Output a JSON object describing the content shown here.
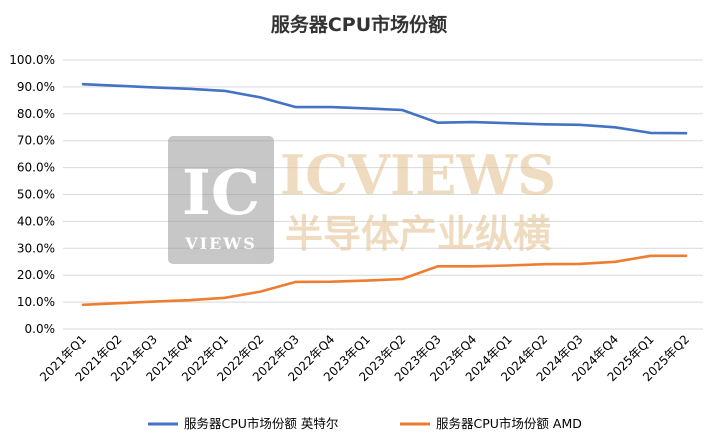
{
  "chart_data": {
    "type": "line",
    "title": "服务器CPU市场份额",
    "categories": [
      "2021年Q1",
      "2021年Q2",
      "2021年Q3",
      "2021年Q4",
      "2022年Q1",
      "2022年Q2",
      "2022年Q3",
      "2022年Q4",
      "2023年Q1",
      "2023年Q2",
      "2023年Q3",
      "2023年Q4",
      "2024年Q1",
      "2024年Q2",
      "2024年Q3",
      "2024年Q4",
      "2025年Q1",
      "2025年Q2"
    ],
    "series": [
      {
        "name": "服务器CPU市场份额 英特尔",
        "color": "#4472C4",
        "values": [
          91.0,
          90.4,
          89.8,
          89.3,
          88.5,
          86.1,
          82.5,
          82.5,
          82.0,
          81.4,
          76.7,
          76.9,
          76.5,
          76.1,
          75.9,
          75.0,
          72.9,
          72.8
        ]
      },
      {
        "name": "服务器CPU市场份额 AMD",
        "color": "#ED7D31",
        "values": [
          9.0,
          9.6,
          10.2,
          10.7,
          11.6,
          13.9,
          17.5,
          17.6,
          18.0,
          18.6,
          23.3,
          23.3,
          23.6,
          24.1,
          24.2,
          25.0,
          27.2,
          27.2
        ]
      }
    ],
    "yticks": [
      "100.0%",
      "90.0%",
      "80.0%",
      "70.0%",
      "60.0%",
      "50.0%",
      "40.0%",
      "30.0%",
      "20.0%",
      "10.0%",
      "0.0%"
    ],
    "ylim": [
      0,
      100
    ],
    "grid": true,
    "legend": "bottom"
  },
  "watermark": {
    "logo_big": "IC",
    "logo_small": "VIEWS",
    "brand": "ICVIEWS",
    "slogan": "半导体产业纵横",
    "color": "#E8C9A0"
  }
}
